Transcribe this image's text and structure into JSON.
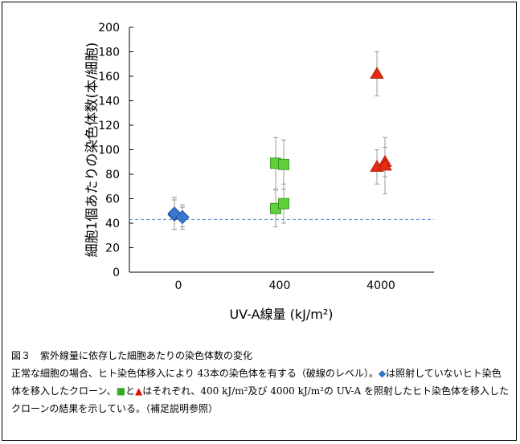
{
  "chart_data": {
    "type": "scatter",
    "title": "",
    "xlabel": "UV-A線量 (kJ/m²)",
    "ylabel": "細胞1個あたりの染色体数(本/細胞)",
    "categories": [
      "0",
      "400",
      "4000"
    ],
    "ylim": [
      0,
      200
    ],
    "yticks": [
      "0",
      "20",
      "40",
      "60",
      "80",
      "100",
      "120",
      "140",
      "160",
      "180",
      "200"
    ],
    "reference_line": {
      "y": 43,
      "style": "dashed",
      "color": "#3a7fd5"
    },
    "series": [
      {
        "marker": "diamond",
        "color": "#3a78d0",
        "points": [
          {
            "category": "0",
            "y": 47,
            "err": 12
          },
          {
            "category": "0",
            "y": 45,
            "err": 10
          },
          {
            "category": "0",
            "y": 48,
            "err": 13
          },
          {
            "category": "0",
            "y": 45,
            "err": 8
          }
        ]
      },
      {
        "marker": "square",
        "color": "#5fd03a",
        "points": [
          {
            "category": "400",
            "y": 89,
            "err": 21
          },
          {
            "category": "400",
            "y": 88,
            "err": 20
          },
          {
            "category": "400",
            "y": 52,
            "err": 15
          },
          {
            "category": "400",
            "y": 56,
            "err": 16
          }
        ]
      },
      {
        "marker": "triangle",
        "color": "#e52a12",
        "points": [
          {
            "category": "4000",
            "y": 162,
            "err": 18
          },
          {
            "category": "4000",
            "y": 90,
            "err": 12
          },
          {
            "category": "4000",
            "y": 86,
            "err": 14
          },
          {
            "category": "4000",
            "y": 87,
            "err": 23
          }
        ]
      }
    ]
  },
  "caption": {
    "figure_title": "図３　紫外線量に依存した細胞あたりの染色体数の変化",
    "line1_pre": "正常な細胞の場合、ヒト染色体移入により 43本の染色体を有する（破線のレベル）。",
    "line1_diamond": "◆",
    "line1_post": "は照射していな",
    "line2_pre": "いヒト染色体を移入したクローン、",
    "line2_square": "■",
    "line2_and": "と",
    "line2_triangle": "▲",
    "line2_post": "はそれぞれ、400 kJ/m²及び 4000 kJ/m²の UV-A を照射したヒト",
    "line3": "染色体を移入したクローンの結果を示している。（補足説明参照）"
  }
}
